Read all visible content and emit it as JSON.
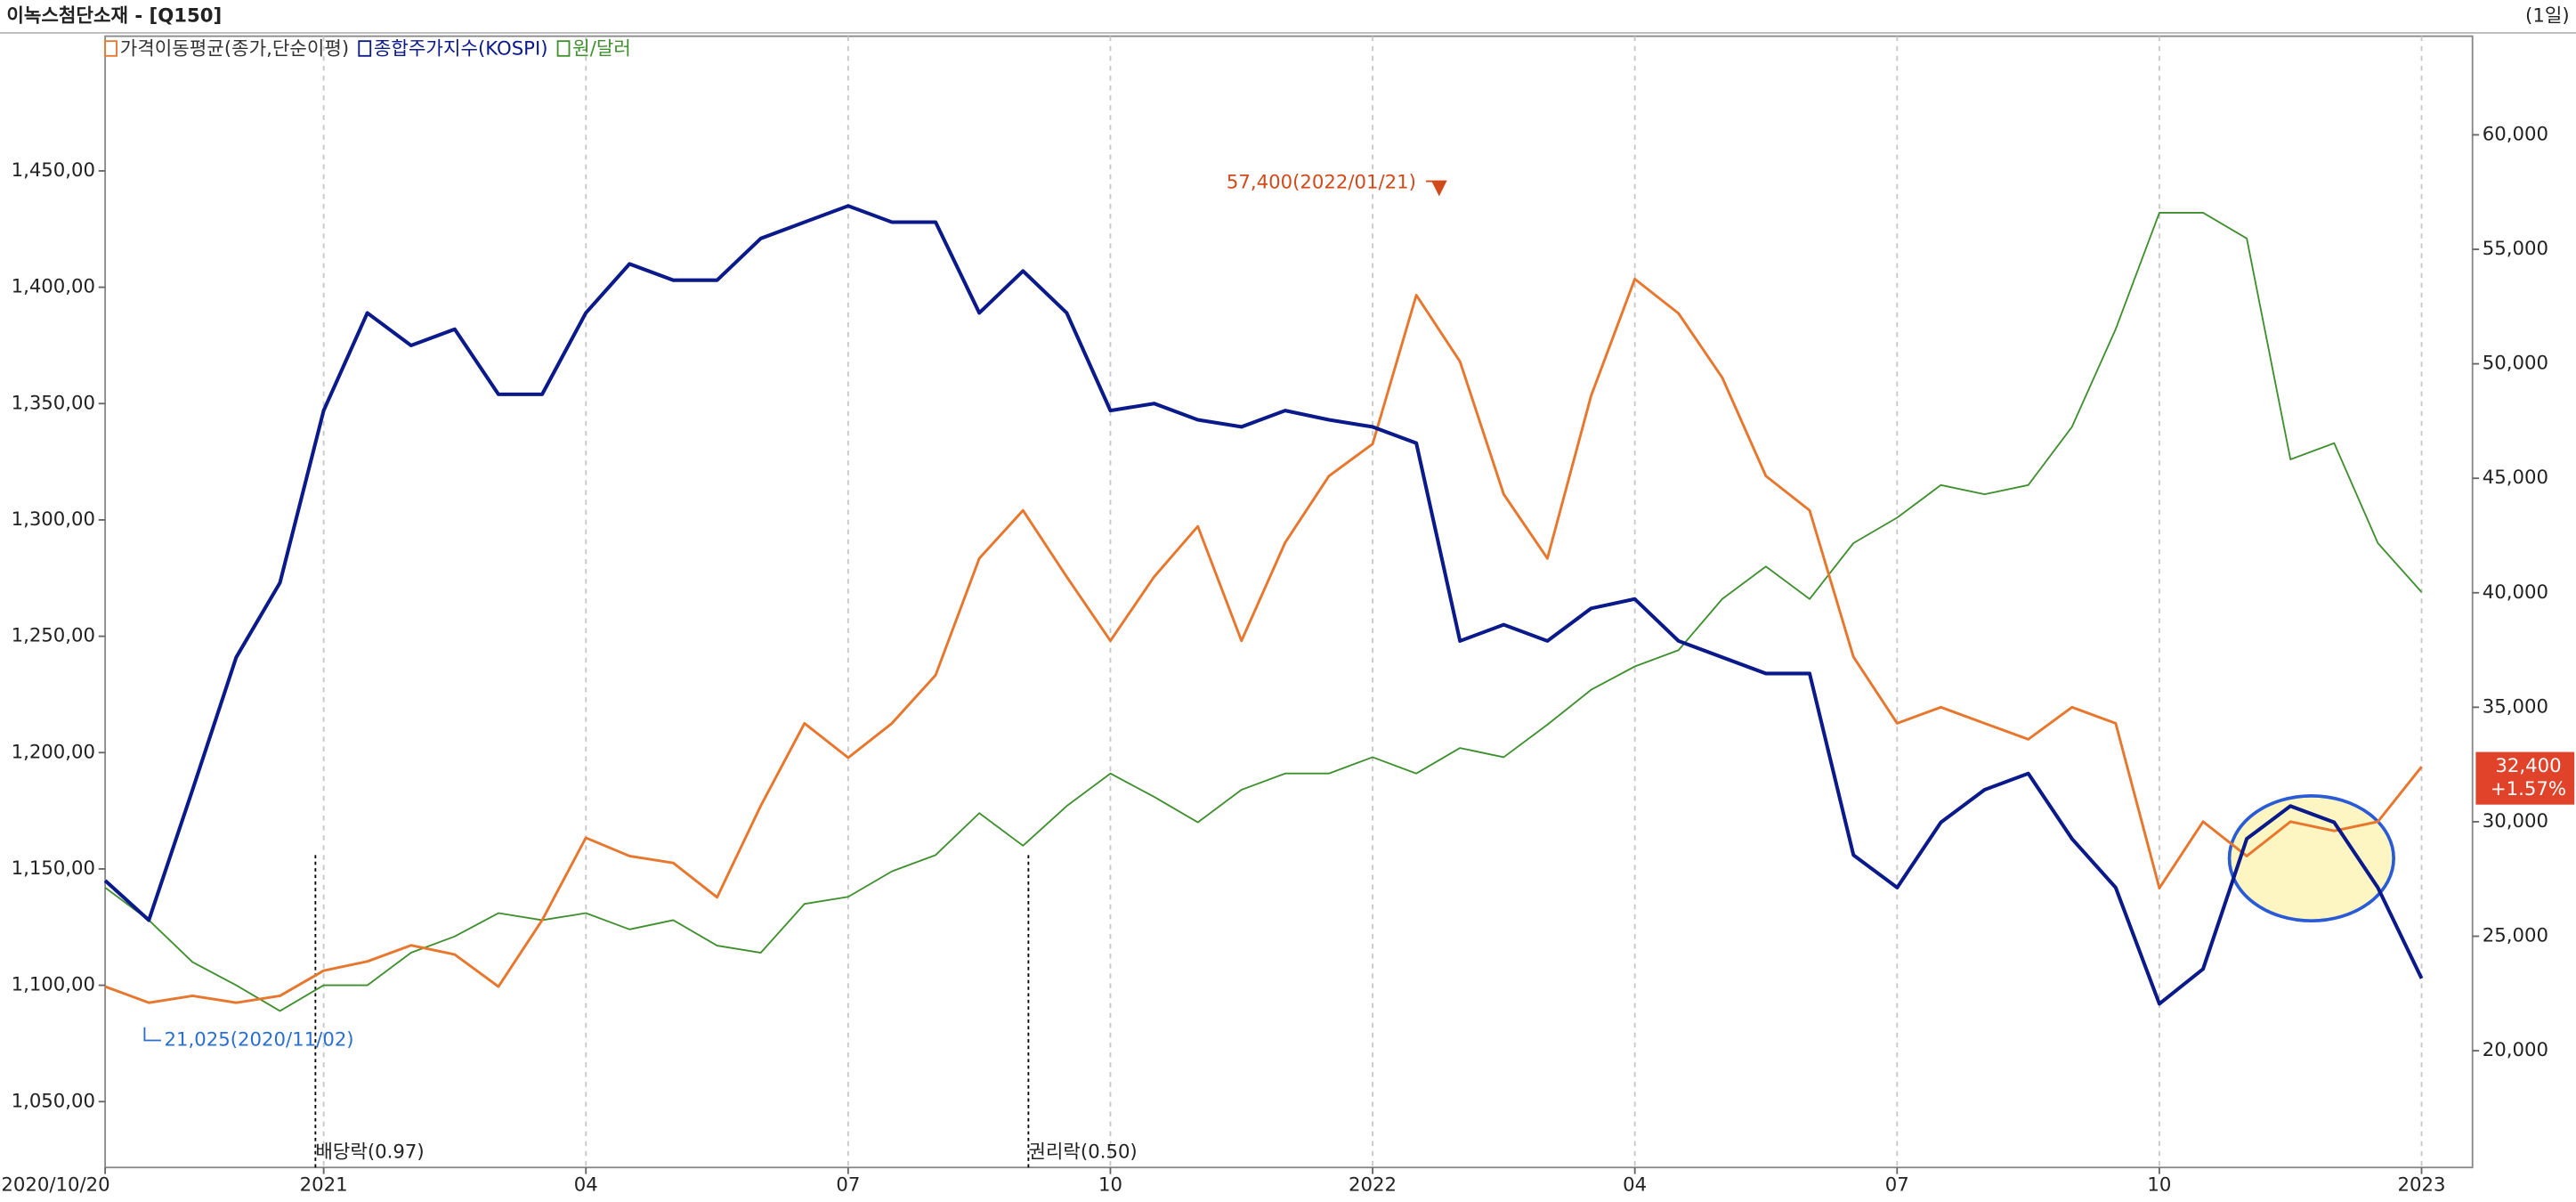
{
  "chart_data": {
    "type": "line",
    "title": "이녹스첨단소재 - [Q150]",
    "period": "(1일)",
    "categories": [
      "2020/10/20",
      null,
      null,
      null,
      null,
      "2021",
      null,
      null,
      null,
      null,
      null,
      "04",
      null,
      null,
      null,
      null,
      null,
      "07",
      null,
      null,
      null,
      null,
      null,
      "10",
      null,
      null,
      null,
      null,
      null,
      "2022",
      null,
      null,
      null,
      null,
      null,
      "04",
      null,
      null,
      null,
      null,
      null,
      "07",
      null,
      null,
      null,
      null,
      null,
      "10",
      null,
      null,
      null,
      null,
      null,
      "2023"
    ],
    "series": [
      {
        "name": "가격이동평균(종가,단순이평)",
        "color": "#e8772e",
        "axis": "y2",
        "values": [
          22800,
          22100,
          22400,
          22100,
          22400,
          23500,
          23900,
          24600,
          24200,
          22800,
          25700,
          29300,
          28500,
          28200,
          26700,
          30700,
          34300,
          32800,
          34300,
          36400,
          41500,
          43600,
          40700,
          37900,
          40700,
          42900,
          37900,
          42200,
          45100,
          46500,
          53000,
          50100,
          44300,
          41500,
          48600,
          53700,
          52200,
          49400,
          45100,
          43600,
          37200,
          34300,
          35000,
          34300,
          33600,
          35000,
          34300,
          27100,
          30000,
          28500,
          30000,
          29600,
          30000,
          32400
        ]
      },
      {
        "name": "종합주가지수(KOSPI)",
        "color": "#0b1a8a",
        "values": [
          1145,
          1128,
          1184,
          1241,
          1273,
          1347,
          1389,
          1375,
          1382,
          1354,
          1354,
          1389,
          1410,
          1403,
          1403,
          1421,
          1428,
          1435,
          1428,
          1428,
          1389,
          1407,
          1389,
          1347,
          1350,
          1343,
          1340,
          1347,
          1343,
          1340,
          1333,
          1248,
          1255,
          1248,
          1262,
          1266,
          1248,
          1241,
          1234,
          1234,
          1156,
          1142,
          1170,
          1184,
          1191,
          1163,
          1142,
          1092,
          1107,
          1163,
          1177,
          1170,
          1142,
          1103
        ]
      },
      {
        "name": "원/달러",
        "color": "#3f8f2f",
        "values": [
          1142,
          1128,
          1110,
          1100,
          1089,
          1100,
          1100,
          1114,
          1121,
          1131,
          1128,
          1131,
          1124,
          1128,
          1117,
          1114,
          1135,
          1138,
          1149,
          1156,
          1174,
          1160,
          1177,
          1191,
          1181,
          1170,
          1184,
          1191,
          1191,
          1198,
          1191,
          1202,
          1198,
          1212,
          1227,
          1237,
          1244,
          1266,
          1280,
          1266,
          1290,
          1301,
          1315,
          1311,
          1315,
          1340,
          1382,
          1432,
          1432,
          1421,
          1326,
          1333,
          1290,
          1269
        ]
      }
    ],
    "ylim": [
      1021.7,
      1507.9
    ],
    "yticks": [
      {
        "value": 1050,
        "label": "1,050,00"
      },
      {
        "value": 1100,
        "label": "1,100,00"
      },
      {
        "value": 1150,
        "label": "1,150,00"
      },
      {
        "value": 1200,
        "label": "1,200,00"
      },
      {
        "value": 1250,
        "label": "1,250,00"
      },
      {
        "value": 1300,
        "label": "1,300,00"
      },
      {
        "value": 1350,
        "label": "1,350,00"
      },
      {
        "value": 1400,
        "label": "1,400,00"
      },
      {
        "value": 1450,
        "label": "1,450,00"
      }
    ],
    "y2lim": [
      14901,
      64309
    ],
    "y2ticks": [
      {
        "value": 20000,
        "label": "20,000"
      },
      {
        "value": 25000,
        "label": "25,000"
      },
      {
        "value": 30000,
        "label": "30,000"
      },
      {
        "value": 35000,
        "label": "35,000"
      },
      {
        "value": 40000,
        "label": "40,000"
      },
      {
        "value": 45000,
        "label": "45,000"
      },
      {
        "value": 50000,
        "label": "50,000"
      },
      {
        "value": 55000,
        "label": "55,000"
      },
      {
        "value": 60000,
        "label": "60,000"
      }
    ],
    "high": {
      "text": "57,400(2022/01/21)",
      "value": 57400
    },
    "low": {
      "text": "21,025(2020/11/02)",
      "value": 21025
    },
    "last": {
      "text": "32,400",
      "value": 32400,
      "change": "+1.57%"
    },
    "events": [
      "배당락(0.97)",
      "권리락(0.50)"
    ]
  }
}
